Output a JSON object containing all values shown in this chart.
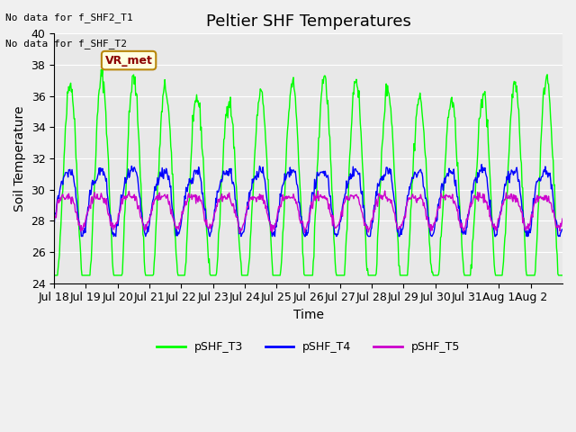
{
  "title": "Peltier SHF Temperatures",
  "xlabel": "Time",
  "ylabel": "Soil Temperature",
  "xlim": [
    0,
    16
  ],
  "ylim": [
    24,
    40
  ],
  "yticks": [
    24,
    26,
    28,
    30,
    32,
    34,
    36,
    38,
    40
  ],
  "xtick_labels": [
    "Jul 18",
    "Jul 19",
    "Jul 20",
    "Jul 21",
    "Jul 22",
    "Jul 23",
    "Jul 24",
    "Jul 25",
    "Jul 26",
    "Jul 27",
    "Jul 28",
    "Jul 29",
    "Jul 30",
    "Jul 31",
    "Aug 1",
    "Aug 2"
  ],
  "xtick_positions": [
    0,
    1,
    2,
    3,
    4,
    5,
    6,
    7,
    8,
    9,
    10,
    11,
    12,
    13,
    14,
    15
  ],
  "color_T3": "#00ff00",
  "color_T4": "#0000ff",
  "color_T5": "#cc00cc",
  "annotation_line1": "No data for f_SHF2_T1",
  "annotation_line2": "No data for f_SHF_T2",
  "vr_met_label": "VR_met",
  "legend_labels": [
    "pSHF_T3",
    "pSHF_T4",
    "pSHF_T5"
  ],
  "bg_color": "#e8e8e8",
  "fig_bg_color": "#f0f0f0",
  "title_fontsize": 13,
  "axis_fontsize": 10,
  "tick_fontsize": 9
}
